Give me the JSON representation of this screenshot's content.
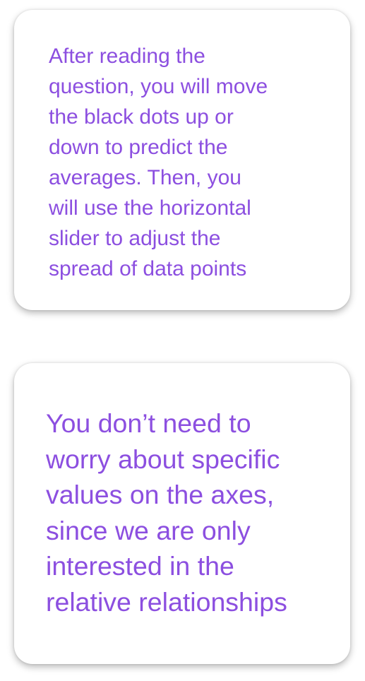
{
  "cards": [
    {
      "lines": [
        "After reading the",
        "question, you will move",
        "the black dots up or",
        "down to predict the",
        "averages. Then, you",
        "will use the horizontal",
        "slider to adjust the",
        "spread of data points"
      ]
    },
    {
      "lines": [
        "You don’t need to",
        "worry about specific",
        "values on the axes,",
        "since we are only",
        "interested in the",
        "relative relationships"
      ]
    }
  ],
  "colors": {
    "text": "#8c4fe0",
    "card_background": "#ffffff"
  }
}
